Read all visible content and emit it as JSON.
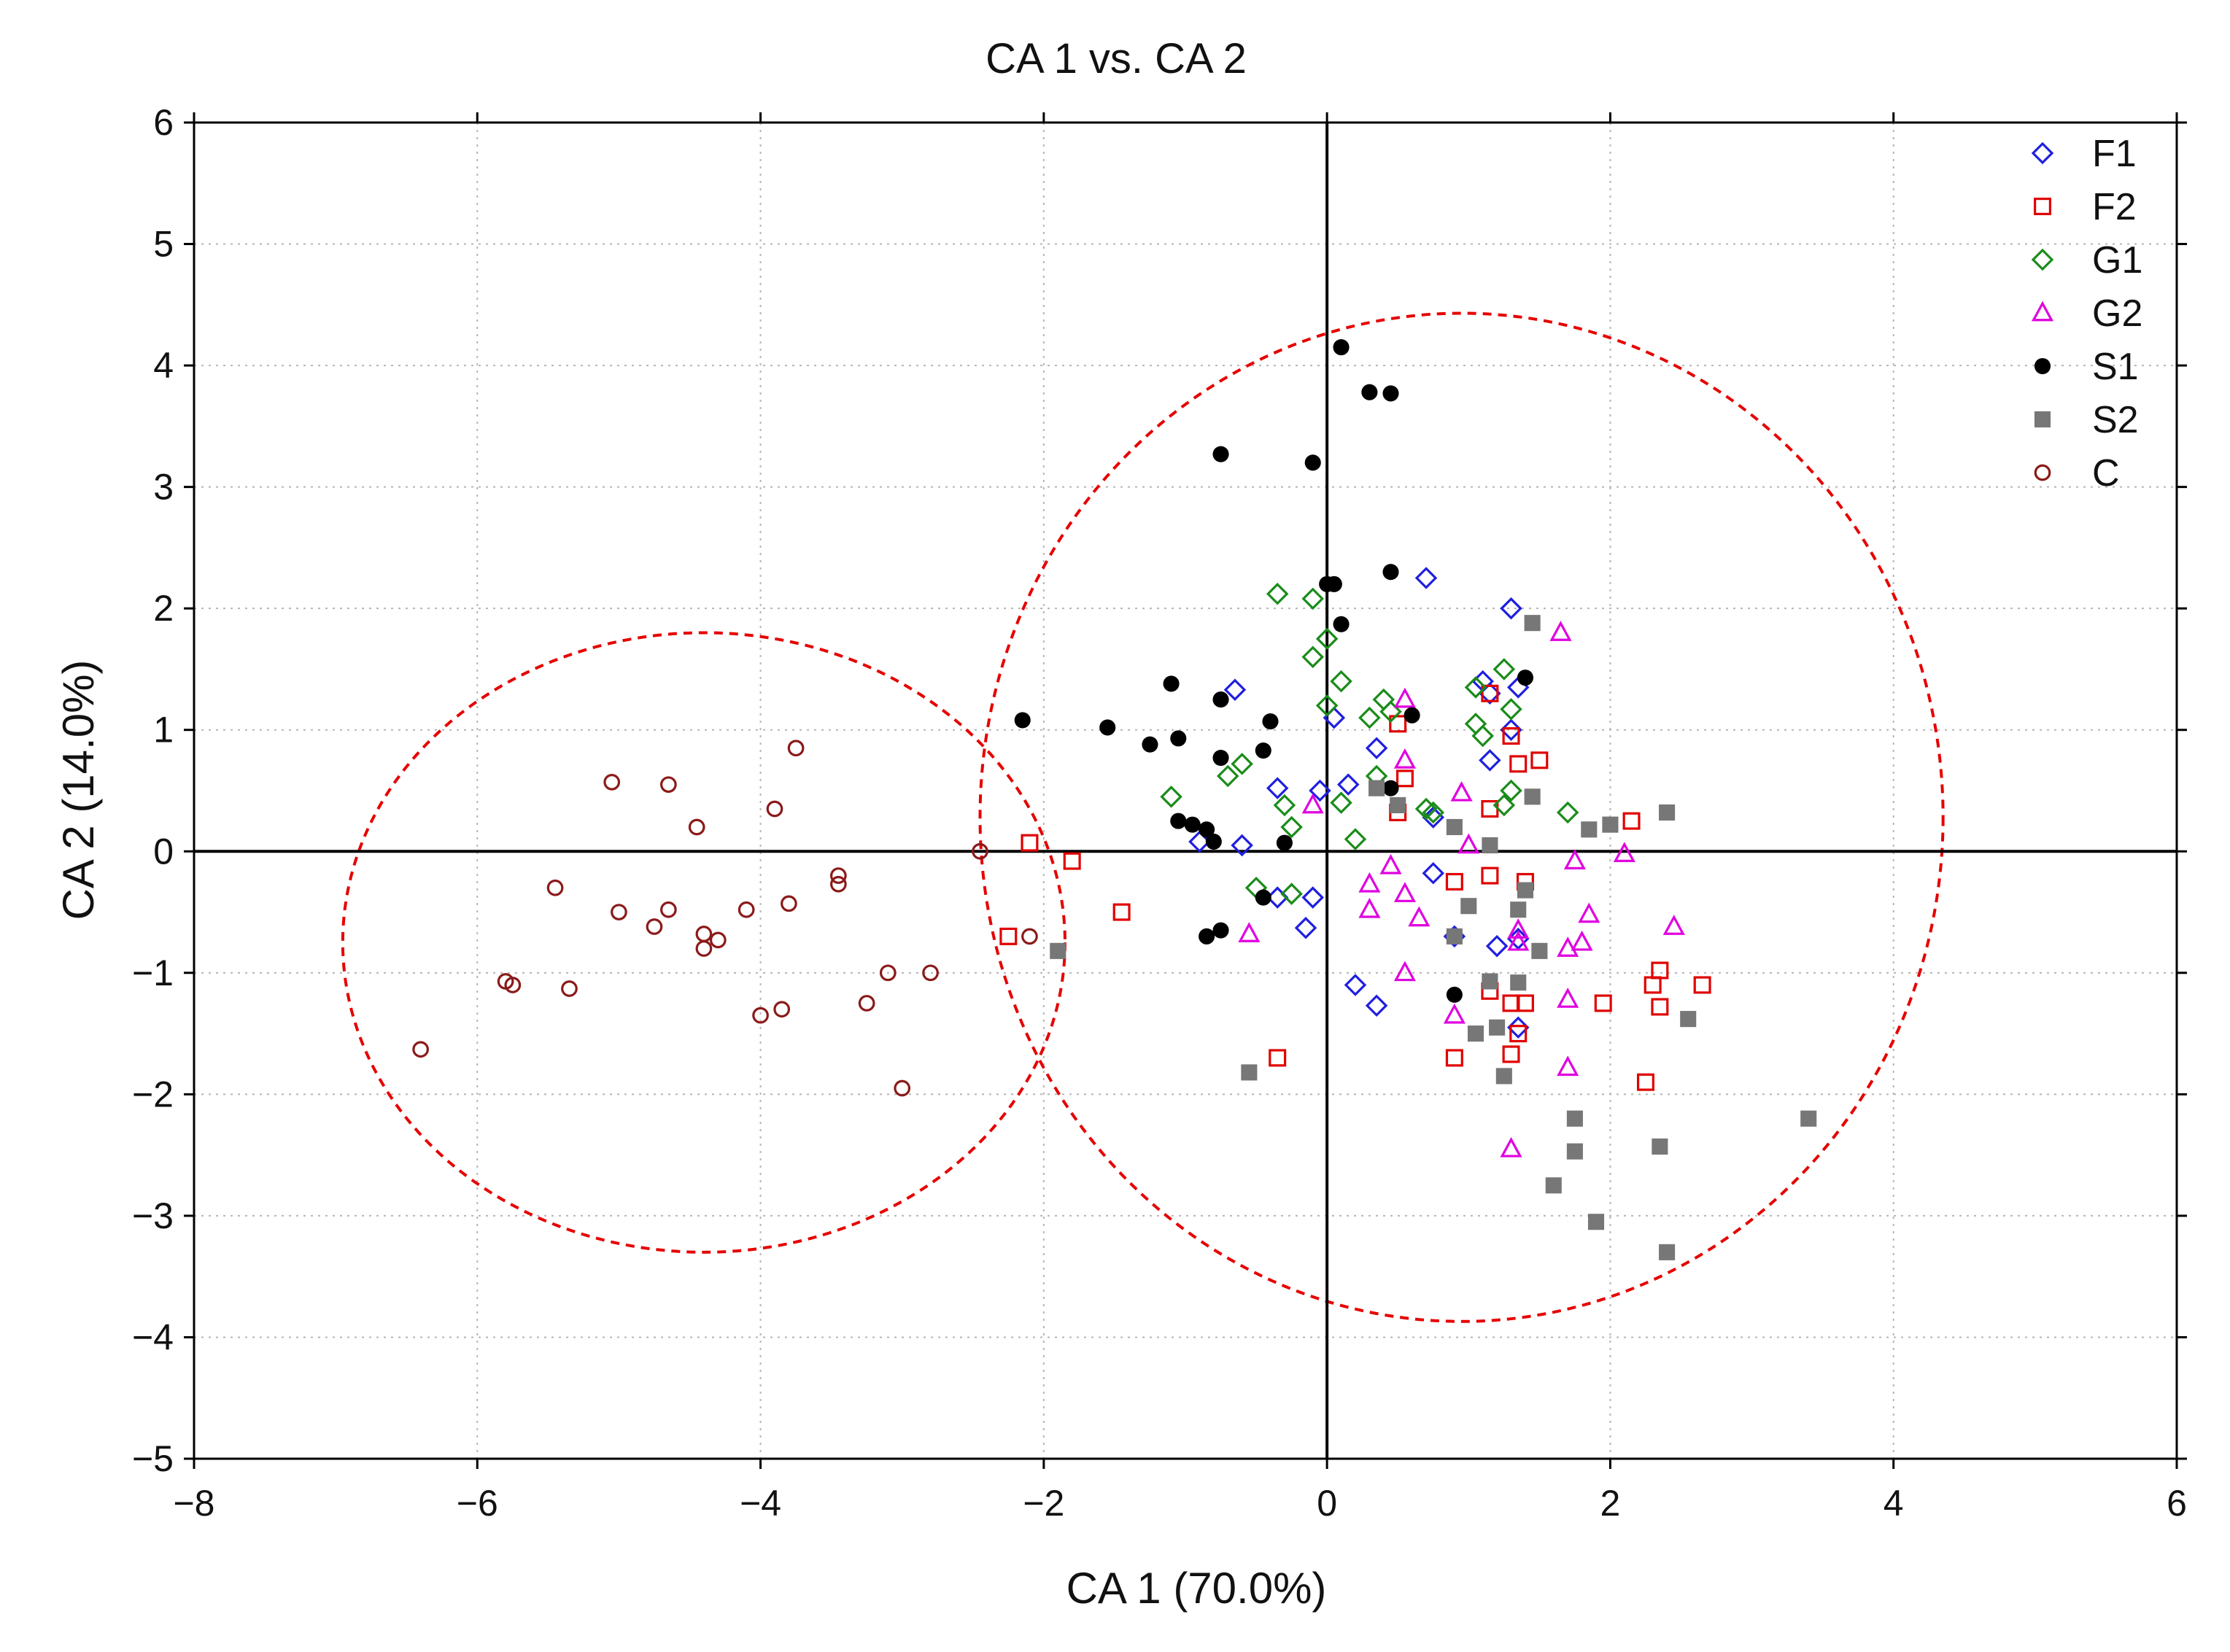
{
  "chart_data": {
    "type": "scatter",
    "title": "CA 1 vs. CA 2",
    "xlabel": "CA 1 (70.0%)",
    "ylabel": "CA 2 (14.0%)",
    "xlim": [
      -8,
      6
    ],
    "ylim": [
      -5,
      6
    ],
    "xticks": [
      -8,
      -6,
      -4,
      -2,
      0,
      2,
      4,
      6
    ],
    "yticks": [
      -5,
      -4,
      -3,
      -2,
      -1,
      0,
      1,
      2,
      3,
      4,
      5,
      6
    ],
    "grid": true,
    "legend_position": "top-right",
    "series": [
      {
        "name": "F1",
        "marker": "diamond-open",
        "color": "#1f1fe0",
        "points": [
          [
            -0.65,
            1.33
          ],
          [
            -0.35,
            0.52
          ],
          [
            -0.05,
            0.5
          ],
          [
            0.05,
            1.1
          ],
          [
            0.15,
            0.55
          ],
          [
            0.35,
            0.85
          ],
          [
            0.7,
            2.25
          ],
          [
            0.75,
            0.28
          ],
          [
            1.3,
            2.0
          ],
          [
            1.1,
            1.4
          ],
          [
            1.3,
            1.0
          ],
          [
            1.15,
            0.75
          ],
          [
            1.35,
            1.35
          ],
          [
            1.15,
            1.3
          ],
          [
            -0.9,
            0.08
          ],
          [
            -0.6,
            0.05
          ],
          [
            -0.35,
            -0.38
          ],
          [
            -0.1,
            -0.38
          ],
          [
            -0.15,
            -0.63
          ],
          [
            0.75,
            -0.18
          ],
          [
            0.9,
            -0.7
          ],
          [
            1.2,
            -0.78
          ],
          [
            1.35,
            -0.72
          ],
          [
            0.2,
            -1.1
          ],
          [
            0.35,
            -1.27
          ],
          [
            1.35,
            -1.45
          ]
        ]
      },
      {
        "name": "F2",
        "marker": "square-open",
        "color": "#e00000",
        "points": [
          [
            -2.1,
            0.07
          ],
          [
            -1.8,
            -0.08
          ],
          [
            -1.45,
            -0.5
          ],
          [
            -2.25,
            -0.7
          ],
          [
            -0.35,
            -1.7
          ],
          [
            0.5,
            1.05
          ],
          [
            0.55,
            0.6
          ],
          [
            0.5,
            0.32
          ],
          [
            1.15,
            1.3
          ],
          [
            1.3,
            0.95
          ],
          [
            1.35,
            0.72
          ],
          [
            1.5,
            0.75
          ],
          [
            1.15,
            0.35
          ],
          [
            2.15,
            0.25
          ],
          [
            0.9,
            -0.25
          ],
          [
            1.15,
            -0.2
          ],
          [
            1.4,
            -0.25
          ],
          [
            1.15,
            -1.15
          ],
          [
            1.3,
            -1.25
          ],
          [
            1.4,
            -1.25
          ],
          [
            1.35,
            -1.5
          ],
          [
            1.3,
            -1.67
          ],
          [
            0.9,
            -1.7
          ],
          [
            1.95,
            -1.25
          ],
          [
            2.3,
            -1.1
          ],
          [
            2.35,
            -0.98
          ],
          [
            2.35,
            -1.28
          ],
          [
            2.65,
            -1.1
          ],
          [
            2.25,
            -1.9
          ]
        ]
      },
      {
        "name": "G1",
        "marker": "diamond-open",
        "color": "#1a8c1a",
        "points": [
          [
            -0.35,
            2.12
          ],
          [
            -0.1,
            2.08
          ],
          [
            -0.1,
            1.6
          ],
          [
            0.0,
            1.75
          ],
          [
            0.1,
            1.4
          ],
          [
            0.0,
            1.2
          ],
          [
            0.3,
            1.1
          ],
          [
            0.4,
            1.25
          ],
          [
            0.45,
            1.15
          ],
          [
            1.05,
            1.35
          ],
          [
            1.25,
            1.5
          ],
          [
            1.3,
            1.17
          ],
          [
            1.1,
            0.95
          ],
          [
            1.05,
            1.05
          ],
          [
            -1.1,
            0.45
          ],
          [
            -0.7,
            0.62
          ],
          [
            -0.6,
            0.72
          ],
          [
            -0.3,
            0.38
          ],
          [
            -0.25,
            0.2
          ],
          [
            0.35,
            0.62
          ],
          [
            0.1,
            0.4
          ],
          [
            0.7,
            0.35
          ],
          [
            0.75,
            0.32
          ],
          [
            1.25,
            0.38
          ],
          [
            1.3,
            0.5
          ],
          [
            1.7,
            0.32
          ],
          [
            0.2,
            0.1
          ],
          [
            -0.5,
            -0.3
          ],
          [
            -0.25,
            -0.35
          ]
        ]
      },
      {
        "name": "G2",
        "marker": "triangle-open",
        "color": "#e000e0",
        "points": [
          [
            1.65,
            1.8
          ],
          [
            0.55,
            1.25
          ],
          [
            0.55,
            0.75
          ],
          [
            0.95,
            0.48
          ],
          [
            -0.1,
            0.38
          ],
          [
            0.45,
            -0.12
          ],
          [
            0.3,
            -0.27
          ],
          [
            0.3,
            -0.48
          ],
          [
            0.55,
            -0.35
          ],
          [
            0.65,
            -0.55
          ],
          [
            0.55,
            -1.0
          ],
          [
            0.9,
            -1.35
          ],
          [
            1.35,
            -0.65
          ],
          [
            1.35,
            -0.75
          ],
          [
            1.7,
            -0.8
          ],
          [
            1.8,
            -0.75
          ],
          [
            1.85,
            -0.52
          ],
          [
            1.75,
            -0.08
          ],
          [
            2.1,
            -0.02
          ],
          [
            2.45,
            -0.62
          ],
          [
            1.7,
            -1.22
          ],
          [
            1.3,
            -2.45
          ],
          [
            1.7,
            -1.78
          ],
          [
            -0.55,
            -0.68
          ],
          [
            1.0,
            0.05
          ]
        ]
      },
      {
        "name": "S1",
        "marker": "circle-filled",
        "color": "#000000",
        "points": [
          [
            0.1,
            4.15
          ],
          [
            0.3,
            3.78
          ],
          [
            0.45,
            3.77
          ],
          [
            -0.75,
            3.27
          ],
          [
            -0.1,
            3.2
          ],
          [
            0.0,
            2.2
          ],
          [
            0.05,
            2.2
          ],
          [
            0.45,
            2.3
          ],
          [
            0.1,
            1.87
          ],
          [
            -2.15,
            1.08
          ],
          [
            -1.55,
            1.02
          ],
          [
            -1.25,
            0.88
          ],
          [
            -1.1,
            1.38
          ],
          [
            -1.05,
            0.93
          ],
          [
            -0.75,
            1.25
          ],
          [
            -0.4,
            1.07
          ],
          [
            -0.75,
            0.77
          ],
          [
            -0.45,
            0.83
          ],
          [
            -1.05,
            0.25
          ],
          [
            -0.95,
            0.22
          ],
          [
            -0.85,
            0.18
          ],
          [
            -0.8,
            0.08
          ],
          [
            -0.3,
            0.07
          ],
          [
            0.6,
            1.12
          ],
          [
            1.4,
            1.43
          ],
          [
            -0.45,
            -0.38
          ],
          [
            -0.85,
            -0.7
          ],
          [
            -0.75,
            -0.65
          ],
          [
            0.9,
            -1.18
          ],
          [
            0.45,
            0.52
          ]
        ]
      },
      {
        "name": "S2",
        "marker": "square-filled",
        "color": "#777777",
        "points": [
          [
            1.45,
            1.88
          ],
          [
            1.45,
            0.45
          ],
          [
            1.85,
            0.18
          ],
          [
            2.0,
            0.22
          ],
          [
            2.4,
            0.32
          ],
          [
            0.35,
            0.52
          ],
          [
            0.5,
            0.38
          ],
          [
            0.9,
            0.2
          ],
          [
            1.15,
            0.05
          ],
          [
            1.4,
            -0.32
          ],
          [
            1.35,
            -0.48
          ],
          [
            1.0,
            -0.45
          ],
          [
            0.9,
            -0.7
          ],
          [
            1.5,
            -0.82
          ],
          [
            1.15,
            -1.07
          ],
          [
            1.35,
            -1.08
          ],
          [
            1.2,
            -1.45
          ],
          [
            1.05,
            -1.5
          ],
          [
            2.55,
            -1.38
          ],
          [
            1.25,
            -1.85
          ],
          [
            -1.9,
            -0.82
          ],
          [
            -0.55,
            -1.82
          ],
          [
            1.75,
            -2.2
          ],
          [
            1.75,
            -2.47
          ],
          [
            1.6,
            -2.75
          ],
          [
            1.9,
            -3.05
          ],
          [
            2.35,
            -2.43
          ],
          [
            2.4,
            -3.3
          ],
          [
            3.4,
            -2.2
          ]
        ]
      },
      {
        "name": "C",
        "marker": "circle-open",
        "color": "#8b1a1a",
        "points": [
          [
            -3.75,
            0.85
          ],
          [
            -5.05,
            0.57
          ],
          [
            -4.65,
            0.55
          ],
          [
            -3.9,
            0.35
          ],
          [
            -4.45,
            0.2
          ],
          [
            -2.45,
            0.0
          ],
          [
            -5.45,
            -0.3
          ],
          [
            -3.45,
            -0.2
          ],
          [
            -3.45,
            -0.27
          ],
          [
            -5.0,
            -0.5
          ],
          [
            -4.65,
            -0.48
          ],
          [
            -4.1,
            -0.48
          ],
          [
            -3.8,
            -0.43
          ],
          [
            -4.75,
            -0.62
          ],
          [
            -4.4,
            -0.68
          ],
          [
            -4.3,
            -0.73
          ],
          [
            -4.4,
            -0.8
          ],
          [
            -2.1,
            -0.7
          ],
          [
            -5.8,
            -1.07
          ],
          [
            -5.75,
            -1.1
          ],
          [
            -5.35,
            -1.13
          ],
          [
            -3.1,
            -1.0
          ],
          [
            -2.8,
            -1.0
          ],
          [
            -3.25,
            -1.25
          ],
          [
            -3.85,
            -1.3
          ],
          [
            -4.0,
            -1.35
          ],
          [
            -3.0,
            -1.95
          ],
          [
            -6.4,
            -1.63
          ]
        ]
      }
    ],
    "confidence_ellipses": [
      {
        "center": [
          -4.4,
          -0.75
        ],
        "radius_x": 2.55,
        "radius_y": 2.55
      },
      {
        "center": [
          0.95,
          0.28
        ],
        "radius_x": 3.4,
        "radius_y": 4.15
      }
    ]
  }
}
